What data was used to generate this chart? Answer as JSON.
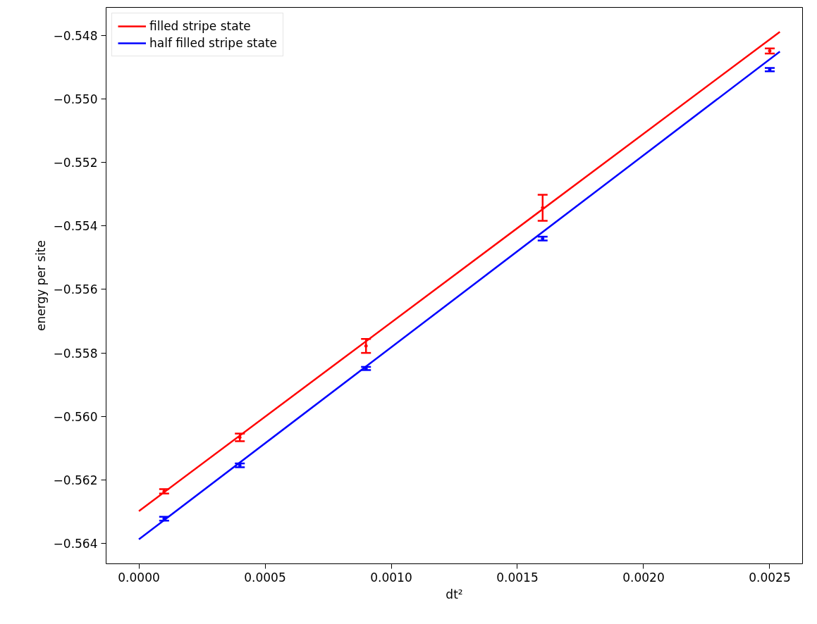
{
  "chart_data": {
    "type": "scatter",
    "xlabel": "dt²",
    "ylabel": "energy per site",
    "xlim": [
      -0.00013,
      0.00263
    ],
    "ylim": [
      -0.56464,
      -0.54712
    ],
    "xticks": [
      {
        "value": 0,
        "label": "0.0000"
      },
      {
        "value": 0.0005,
        "label": "0.0005"
      },
      {
        "value": 0.001,
        "label": "0.0010"
      },
      {
        "value": 0.0015,
        "label": "0.0015"
      },
      {
        "value": 0.002,
        "label": "0.0020"
      },
      {
        "value": 0.0025,
        "label": "0.0025"
      }
    ],
    "yticks": [
      {
        "value": -0.564,
        "label": "−0.564"
      },
      {
        "value": -0.562,
        "label": "−0.562"
      },
      {
        "value": -0.56,
        "label": "−0.560"
      },
      {
        "value": -0.558,
        "label": "−0.558"
      },
      {
        "value": -0.556,
        "label": "−0.556"
      },
      {
        "value": -0.554,
        "label": "−0.554"
      },
      {
        "value": -0.552,
        "label": "−0.552"
      },
      {
        "value": -0.55,
        "label": "−0.550"
      },
      {
        "value": -0.548,
        "label": "−0.548"
      }
    ],
    "legend": "top left",
    "grid": false,
    "series": [
      {
        "name": "filled stripe state",
        "type": "line",
        "color": "#ff0000",
        "x": [
          0,
          0.00254
        ],
        "values": [
          -0.56298,
          -0.54789
        ]
      },
      {
        "name": "half filled stripe state",
        "type": "line",
        "color": "#0000ff",
        "x": [
          0,
          0.00254
        ],
        "values": [
          -0.56387,
          -0.54851
        ]
      },
      {
        "color": "#ff0000",
        "x": [
          0.0001,
          0.0004,
          0.0009,
          0.0016,
          0.0025
        ],
        "values": [
          -0.56236,
          -0.56066,
          -0.55778,
          -0.55343,
          -0.54849
        ],
        "errors": [
          7e-05,
          0.00012,
          0.00022,
          0.00041,
          8e-05
        ]
      },
      {
        "color": "#0000ff",
        "x": [
          0.0001,
          0.0004,
          0.0009,
          0.0016,
          0.0025
        ],
        "values": [
          -0.56322,
          -0.56154,
          -0.55849,
          -0.5544,
          -0.54908
        ],
        "errors": [
          6e-05,
          6e-05,
          5e-05,
          6e-05,
          5e-05
        ]
      }
    ]
  }
}
